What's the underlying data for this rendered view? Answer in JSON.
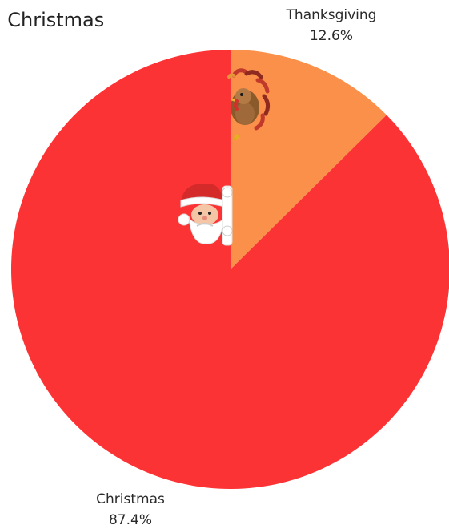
{
  "chart_data": {
    "type": "pie",
    "title": ". Christmas",
    "slices": [
      {
        "label": "Thanksgiving",
        "value": 12.6,
        "value_label": "12.6%",
        "color": "#FB904A"
      },
      {
        "label": "Christmas",
        "value": 87.4,
        "value_label": "87.4%",
        "color": "#FC3334"
      }
    ],
    "start_angle_deg": 0,
    "direction": "clockwise",
    "decorations": {
      "thanksgiving_slice": "turkey-icon",
      "christmas_slice": "santa-icon"
    }
  }
}
